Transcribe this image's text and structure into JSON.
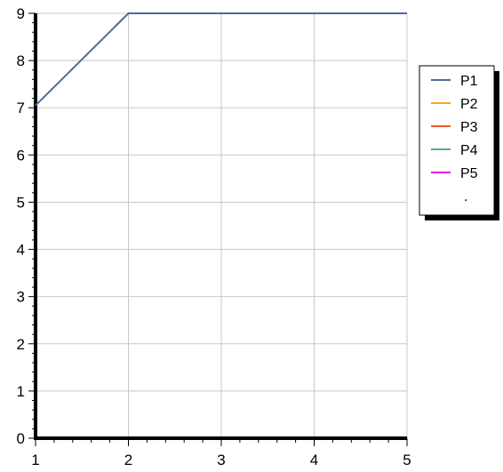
{
  "chart_data": {
    "type": "line",
    "title": "",
    "xlabel": "",
    "ylabel": "",
    "xlim": [
      1,
      5
    ],
    "ylim": [
      0,
      9
    ],
    "x_ticks": [
      "1",
      "2",
      "3",
      "4",
      "5"
    ],
    "y_ticks": [
      "0",
      "1",
      "2",
      "3",
      "4",
      "5",
      "6",
      "7",
      "8",
      "9"
    ],
    "grid": true,
    "legend_position": "right",
    "series": [
      {
        "name": "P1",
        "color": "#4e6a9a",
        "x": [
          1,
          2,
          3,
          4,
          5
        ],
        "y": [
          7.05,
          9,
          9,
          9,
          9
        ]
      },
      {
        "name": "P2",
        "color": "#f5a623",
        "x": [],
        "y": []
      },
      {
        "name": "P3",
        "color": "#f05a28",
        "x": [],
        "y": []
      },
      {
        "name": "P4",
        "color": "#5fa2a0",
        "x": [],
        "y": []
      },
      {
        "name": "P5",
        "color": "#e81ee8",
        "x": [],
        "y": []
      }
    ],
    "legend_extra": "."
  }
}
